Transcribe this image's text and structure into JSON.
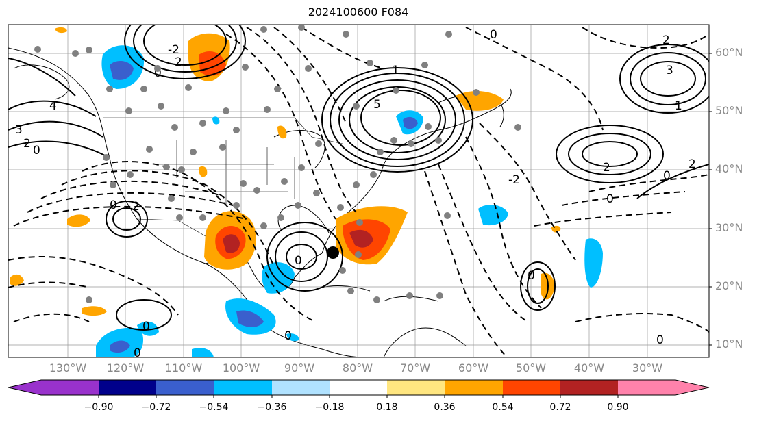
{
  "title": "2024100600 F084",
  "lat_labels": [
    "60°N",
    "50°N",
    "40°N",
    "30°N",
    "20°N",
    "10°N"
  ],
  "lon_labels": [
    "130°W",
    "120°W",
    "110°W",
    "100°W",
    "90°W",
    "80°W",
    "70°W",
    "60°W",
    "50°W",
    "40°W",
    "30°W"
  ],
  "colorbar": {
    "ticks": [
      "−0.90",
      "−0.72",
      "−0.54",
      "−0.36",
      "−0.18",
      "0.18",
      "0.36",
      "0.54",
      "0.72",
      "0.90"
    ],
    "colors": [
      "#9932cc",
      "#00008b",
      "#3a5fcd",
      "#00bfff",
      "#b0e2ff",
      "#ffffff",
      "#ffe680",
      "#ffa500",
      "#ff4500",
      "#b22222",
      "#ff82ab"
    ]
  },
  "contour_labels": [
    "2",
    "0",
    "-2",
    "4",
    "3",
    "5",
    "1",
    "0",
    "2",
    "3",
    "2",
    "1",
    "0",
    "0",
    "2",
    "-2",
    "0",
    "2",
    "0",
    "0",
    "0",
    "0",
    "0",
    "0",
    "0",
    "2"
  ]
}
